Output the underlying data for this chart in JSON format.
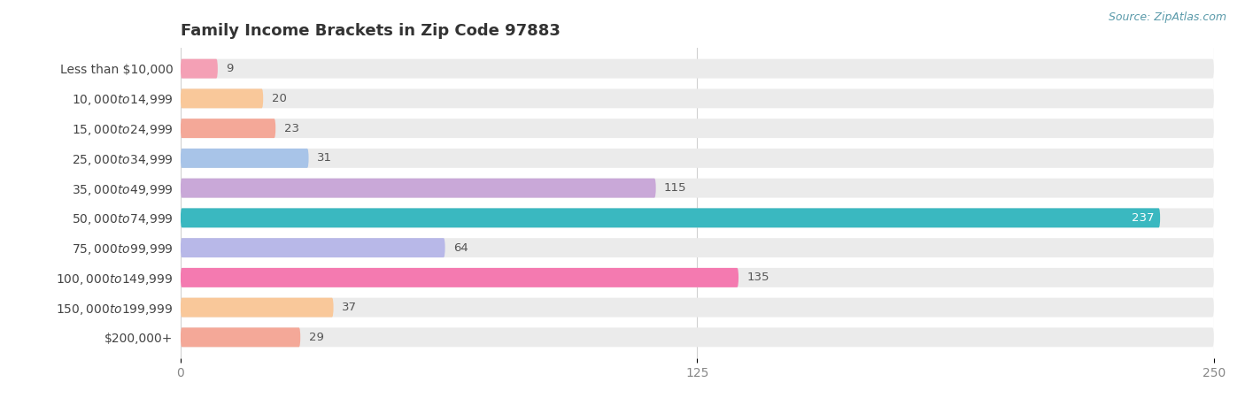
{
  "title": "Family Income Brackets in Zip Code 97883",
  "source": "Source: ZipAtlas.com",
  "categories": [
    "Less than $10,000",
    "$10,000 to $14,999",
    "$15,000 to $24,999",
    "$25,000 to $34,999",
    "$35,000 to $49,999",
    "$50,000 to $74,999",
    "$75,000 to $99,999",
    "$100,000 to $149,999",
    "$150,000 to $199,999",
    "$200,000+"
  ],
  "values": [
    9,
    20,
    23,
    31,
    115,
    237,
    64,
    135,
    37,
    29
  ],
  "bar_colors": [
    "#f4a0b5",
    "#f9c89a",
    "#f4a898",
    "#a8c4e8",
    "#c9a8d8",
    "#3ab8c0",
    "#b8b8e8",
    "#f47ab0",
    "#f9c89a",
    "#f4a898"
  ],
  "xlim": [
    0,
    250
  ],
  "xticks": [
    0,
    125,
    250
  ],
  "background_color": "#ffffff",
  "bar_background_color": "#ebebeb",
  "title_fontsize": 13,
  "label_fontsize": 10,
  "value_fontsize": 9.5,
  "bar_height": 0.65,
  "figsize": [
    14.06,
    4.5
  ],
  "dpi": 100
}
